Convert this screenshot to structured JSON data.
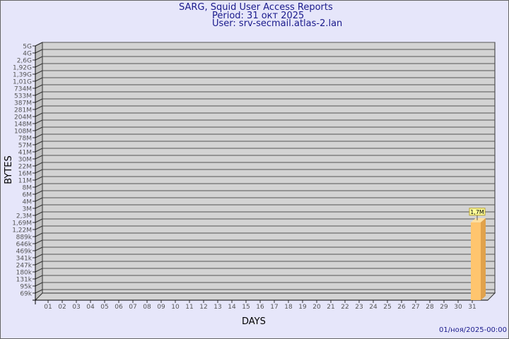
{
  "chart_data": {
    "type": "bar",
    "title": "SARG, Squid User Access Reports",
    "subtitle_period": "Period: 31 окт 2025",
    "subtitle_user": "User: srv-secmail.atlas-2.lan",
    "xlabel": "DAYS",
    "ylabel": "BYTES",
    "y_scale": "log",
    "y_tick_labels": [
      "5G",
      "4G",
      "2,6G",
      "1,92G",
      "1,39G",
      "1,01G",
      "734M",
      "533M",
      "387M",
      "281M",
      "204M",
      "148M",
      "108M",
      "78M",
      "57M",
      "41M",
      "30M",
      "22M",
      "16M",
      "11M",
      "8M",
      "6M",
      "4M",
      "3M",
      "2,3M",
      "1,69M",
      "1,22M",
      "889k",
      "646k",
      "469k",
      "341k",
      "247k",
      "180k",
      "131k",
      "95k",
      "69k"
    ],
    "categories": [
      "01",
      "02",
      "03",
      "04",
      "05",
      "06",
      "07",
      "08",
      "09",
      "10",
      "11",
      "12",
      "13",
      "14",
      "15",
      "16",
      "17",
      "18",
      "19",
      "20",
      "21",
      "22",
      "23",
      "24",
      "25",
      "26",
      "27",
      "28",
      "29",
      "30",
      "31"
    ],
    "values": [
      0,
      0,
      0,
      0,
      0,
      0,
      0,
      0,
      0,
      0,
      0,
      0,
      0,
      0,
      0,
      0,
      0,
      0,
      0,
      0,
      0,
      0,
      0,
      0,
      0,
      0,
      0,
      0,
      0,
      0,
      1700000
    ],
    "data_labels": {
      "31": "1,7M"
    },
    "grid": true,
    "footer": "01/ноя/2025-00:00",
    "colors": {
      "background": "#e6e6fa",
      "plot": "#d3d3d3",
      "bar": "#ffc56e",
      "bar_side": "#e0a24c",
      "text": "#1a1a8c",
      "label_box": "#ffff99"
    }
  }
}
